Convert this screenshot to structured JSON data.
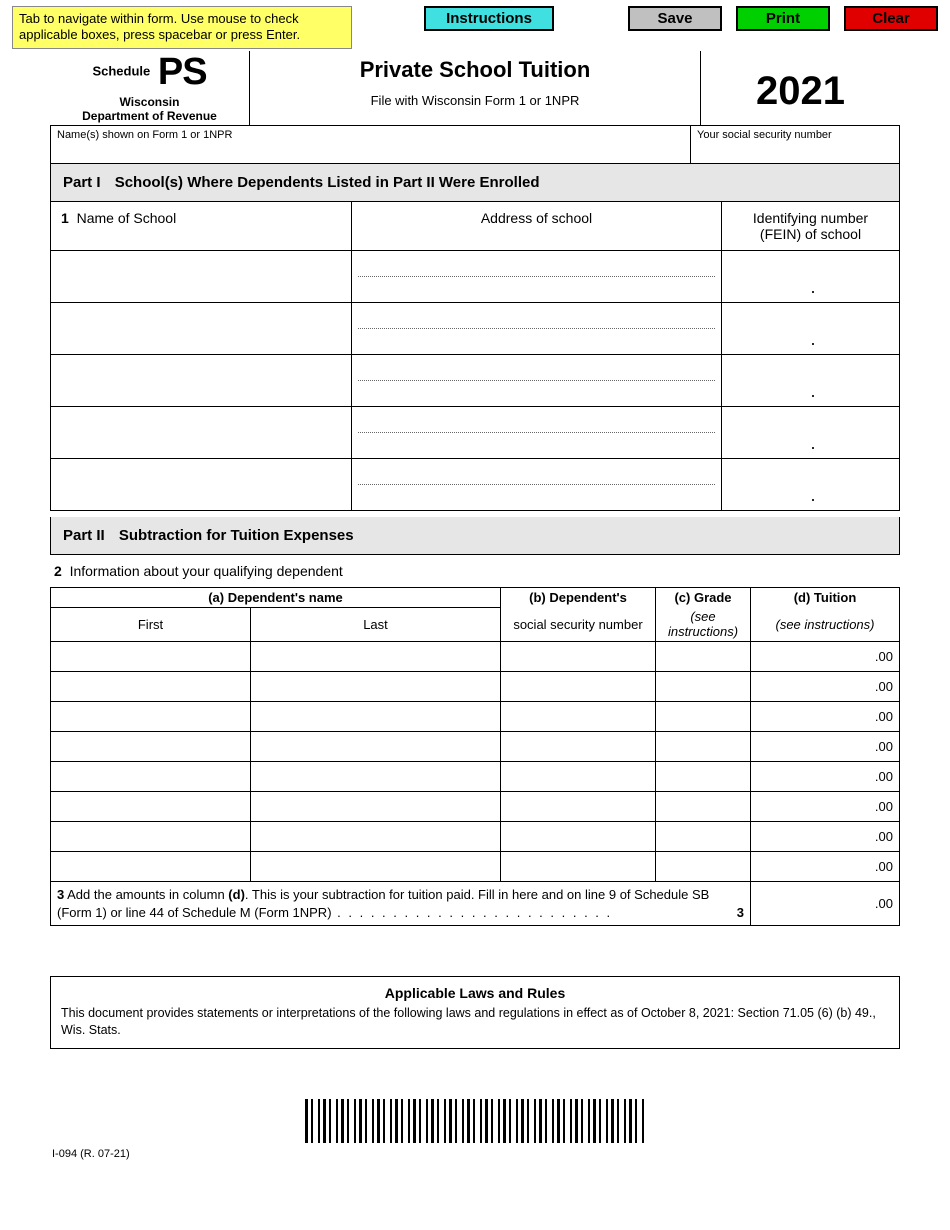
{
  "hint": "Tab to navigate within form. Use mouse to check applicable boxes, press spacebar or press Enter.",
  "buttons": {
    "instructions": "Instructions",
    "save": "Save",
    "print": "Print",
    "clear": "Clear"
  },
  "header": {
    "schedule_label": "Schedule",
    "schedule_code": "PS",
    "state": "Wisconsin",
    "dept": "Department of Revenue",
    "title": "Private School Tuition",
    "subtitle": "File with Wisconsin Form 1 or 1NPR",
    "year": "2021"
  },
  "id_labels": {
    "name": "Name(s) shown on Form 1 or 1NPR",
    "ssn": "Your social security number"
  },
  "part1": {
    "num": "Part I",
    "title": "School(s) Where Dependents Listed in Part II Were Enrolled",
    "line1_num": "1",
    "col_name": "Name of School",
    "col_addr": "Address of school",
    "col_fein_l1": "Identifying number",
    "col_fein_l2": "(FEIN) of school",
    "rows": 5
  },
  "part2": {
    "num": "Part II",
    "title": "Subtraction for Tuition Expenses",
    "line2_num": "2",
    "line2_text": "Information about your qualifying dependent",
    "col_a": "(a)  Dependent's name",
    "col_a_first": "First",
    "col_a_last": "Last",
    "col_b_l1": "(b)  Dependent's",
    "col_b_l2": "social security number",
    "col_c_l1": "(c)  Grade",
    "col_c_l2": "(see instructions)",
    "col_d_l1": "(d)  Tuition",
    "col_d_l2": "(see instructions)",
    "tuition_suffix": ".00",
    "rows": 8,
    "line3_num": "3",
    "line3_text_a": "Add the amounts in column ",
    "line3_bold": "(d)",
    "line3_text_b": ".  This is your subtraction for tuition paid.  Fill in here and on line 9 of Schedule SB (Form 1) or line 44 of Schedule M (Form 1NPR)",
    "line3_dots": " . . . . . . . . . . . . . . . . . . . . . . . . . ",
    "line3_right_num": "3",
    "line3_value": ".00"
  },
  "laws": {
    "title": "Applicable Laws and Rules",
    "text": "This document provides statements or interpretations of the following laws and regulations in effect as of October 8, 2021:  Section 71.05 (6) (b) 49., Wis. Stats."
  },
  "form_id": "I-094 (R. 07-21)"
}
